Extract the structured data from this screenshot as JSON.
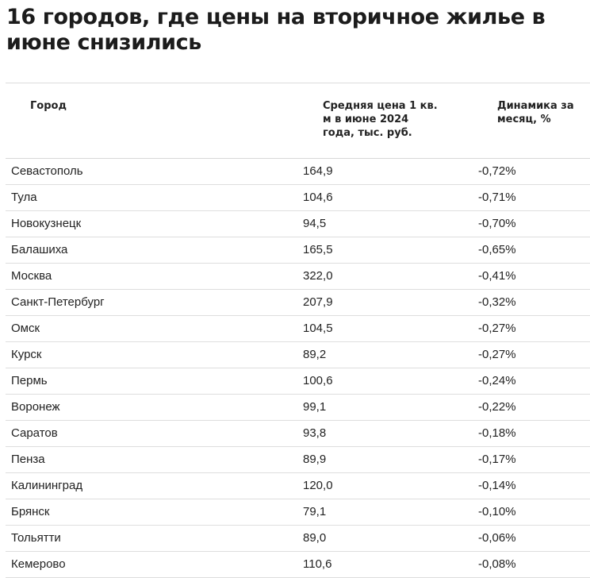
{
  "title": "16 городов, где цены на вторичное жилье в июне снизились",
  "table": {
    "headers": {
      "city": "Город",
      "price": "Средняя цена 1 кв. м в июне 2024 года, тыс. руб.",
      "dynamics": "Динамика за месяц, %"
    },
    "rows": [
      {
        "city": "Севастополь",
        "price": "164,9",
        "dynamics": "-0,72%"
      },
      {
        "city": "Тула",
        "price": "104,6",
        "dynamics": "-0,71%"
      },
      {
        "city": "Новокузнецк",
        "price": "94,5",
        "dynamics": "-0,70%"
      },
      {
        "city": "Балашиха",
        "price": "165,5",
        "dynamics": "-0,65%"
      },
      {
        "city": "Москва",
        "price": "322,0",
        "dynamics": "-0,41%"
      },
      {
        "city": "Санкт-Петербург",
        "price": "207,9",
        "dynamics": "-0,32%"
      },
      {
        "city": "Омск",
        "price": "104,5",
        "dynamics": "-0,27%"
      },
      {
        "city": "Курск",
        "price": "89,2",
        "dynamics": "-0,27%"
      },
      {
        "city": "Пермь",
        "price": "100,6",
        "dynamics": "-0,24%"
      },
      {
        "city": "Воронеж",
        "price": "99,1",
        "dynamics": "-0,22%"
      },
      {
        "city": "Саратов",
        "price": "93,8",
        "dynamics": "-0,18%"
      },
      {
        "city": "Пенза",
        "price": "89,9",
        "dynamics": "-0,17%"
      },
      {
        "city": "Калининград",
        "price": "120,0",
        "dynamics": "-0,14%"
      },
      {
        "city": "Брянск",
        "price": "79,1",
        "dynamics": "-0,10%"
      },
      {
        "city": "Тольятти",
        "price": "89,0",
        "dynamics": "-0,06%"
      },
      {
        "city": "Кемерово",
        "price": "110,6",
        "dynamics": "-0,08%"
      }
    ]
  }
}
